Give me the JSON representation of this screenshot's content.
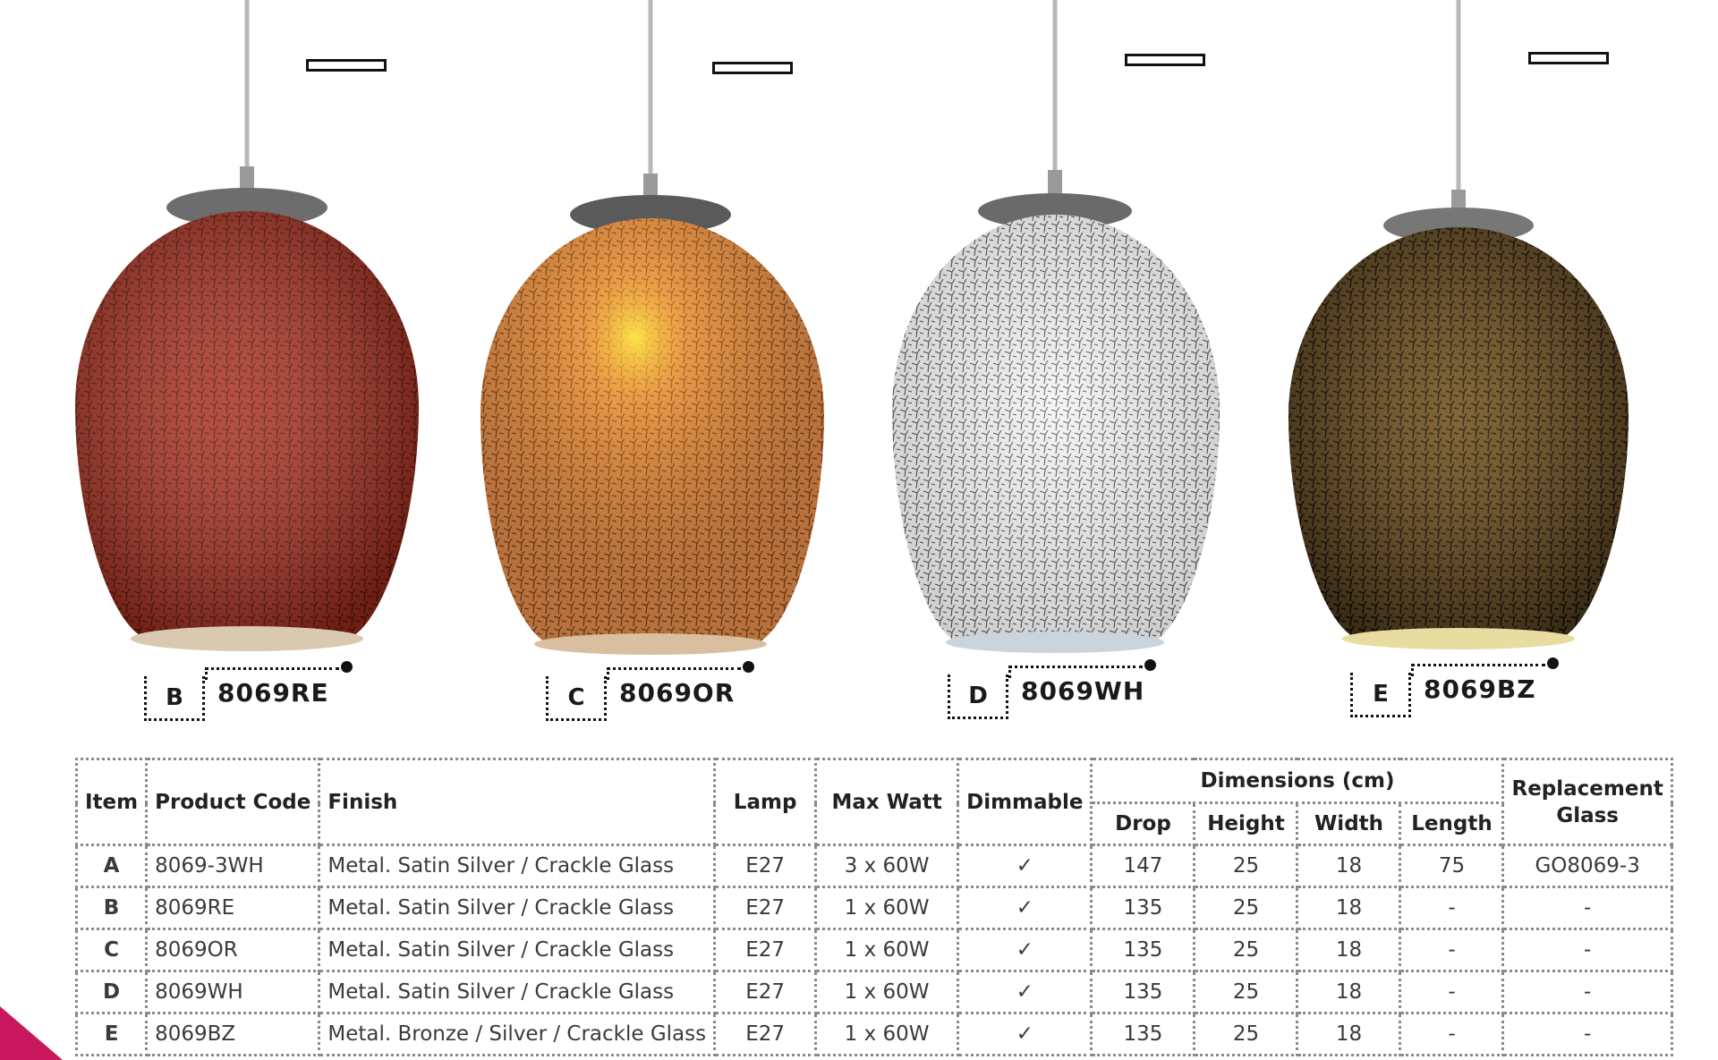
{
  "products": [
    {
      "letter": "B",
      "code": "8069RE",
      "color": "#a8301f"
    },
    {
      "letter": "C",
      "code": "8069OR",
      "color": "#e08a4a"
    },
    {
      "letter": "D",
      "code": "8069WH",
      "color": "#efefef"
    },
    {
      "letter": "E",
      "code": "8069BZ",
      "color": "#3a2a17"
    }
  ],
  "table": {
    "headers": {
      "item": "Item",
      "product_code": "Product Code",
      "finish": "Finish",
      "lamp": "Lamp",
      "max_watt": "Max Watt",
      "dimmable": "Dimmable",
      "dimensions": "Dimensions (cm)",
      "drop": "Drop",
      "height": "Height",
      "width": "Width",
      "length": "Length",
      "replacement_glass": "Replacement Glass"
    },
    "rows": [
      {
        "item": "A",
        "code": "8069-3WH",
        "finish": "Metal. Satin Silver / Crackle Glass",
        "lamp": "E27",
        "watt": "3 x 60W",
        "dimmable": "✓",
        "drop": "147",
        "height": "25",
        "width": "18",
        "length": "75",
        "glass": "GO8069-3"
      },
      {
        "item": "B",
        "code": "8069RE",
        "finish": "Metal. Satin Silver / Crackle Glass",
        "lamp": "E27",
        "watt": "1 x 60W",
        "dimmable": "✓",
        "drop": "135",
        "height": "25",
        "width": "18",
        "length": "-",
        "glass": "-"
      },
      {
        "item": "C",
        "code": "8069OR",
        "finish": "Metal. Satin Silver / Crackle Glass",
        "lamp": "E27",
        "watt": "1 x 60W",
        "dimmable": "✓",
        "drop": "135",
        "height": "25",
        "width": "18",
        "length": "-",
        "glass": "-"
      },
      {
        "item": "D",
        "code": "8069WH",
        "finish": "Metal. Satin Silver / Crackle Glass",
        "lamp": "E27",
        "watt": "1 x 60W",
        "dimmable": "✓",
        "drop": "135",
        "height": "25",
        "width": "18",
        "length": "-",
        "glass": "-"
      },
      {
        "item": "E",
        "code": "8069BZ",
        "finish": "Metal. Bronze / Silver / Crackle Glass",
        "lamp": "E27",
        "watt": "1 x 60W",
        "dimmable": "✓",
        "drop": "135",
        "height": "25",
        "width": "18",
        "length": "-",
        "glass": "-"
      }
    ]
  },
  "accent_color": "#c8175d"
}
